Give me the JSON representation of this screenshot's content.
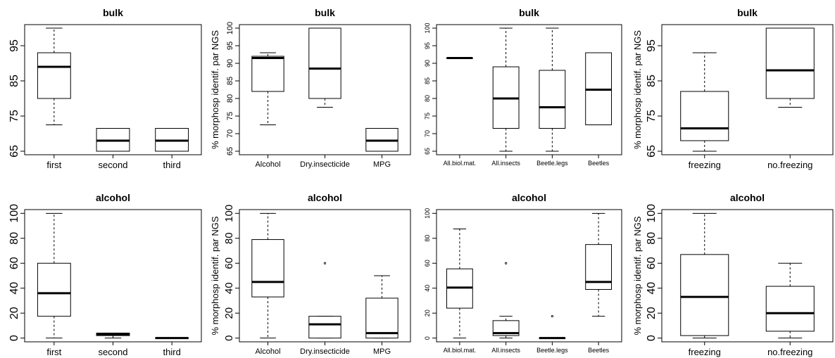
{
  "chart_data": [
    {
      "type": "boxplot",
      "title": "bulk",
      "ylabel": "",
      "ylim": [
        64,
        101
      ],
      "yticks": [
        65,
        75,
        85,
        95
      ],
      "categories": [
        "first",
        "second",
        "third"
      ],
      "boxes": [
        {
          "min": 72.5,
          "q1": 80,
          "median": 89,
          "q3": 93,
          "max": 100,
          "outliers": []
        },
        {
          "min": 65,
          "q1": 65,
          "median": 68,
          "q3": 71.5,
          "max": 71.5,
          "outliers": []
        },
        {
          "min": 65,
          "q1": 65,
          "median": 68,
          "q3": 71.5,
          "max": 71.5,
          "outliers": []
        }
      ]
    },
    {
      "type": "boxplot",
      "title": "bulk",
      "ylabel": "% morphosp identif. par NGS",
      "ylim": [
        64,
        101
      ],
      "yticks": [
        65,
        70,
        75,
        80,
        85,
        90,
        95,
        100
      ],
      "categories": [
        "Alcohol",
        "Dry.insecticide",
        "MPG"
      ],
      "boxes": [
        {
          "min": 72.5,
          "q1": 82,
          "median": 91.5,
          "q3": 92,
          "max": 93,
          "outliers": []
        },
        {
          "min": 77.5,
          "q1": 80,
          "median": 88.5,
          "q3": 100,
          "max": 100,
          "outliers": []
        },
        {
          "min": 65,
          "q1": 65,
          "median": 68,
          "q3": 71.5,
          "max": 71.5,
          "outliers": []
        }
      ]
    },
    {
      "type": "boxplot",
      "title": "bulk",
      "ylabel": "",
      "ylim": [
        64,
        101
      ],
      "yticks": [
        65,
        70,
        75,
        80,
        85,
        90,
        95,
        100
      ],
      "categories": [
        "All.biol.mat.",
        "All.insects",
        "Beetle.legs",
        "Beetles"
      ],
      "boxes": [
        {
          "min": 91.5,
          "q1": 91.5,
          "median": 91.5,
          "q3": 91.5,
          "max": 91.5,
          "outliers": []
        },
        {
          "min": 65,
          "q1": 71.5,
          "median": 80,
          "q3": 89,
          "max": 100,
          "outliers": []
        },
        {
          "min": 65,
          "q1": 71.5,
          "median": 77.5,
          "q3": 88,
          "max": 100,
          "outliers": []
        },
        {
          "min": 72.5,
          "q1": 72.5,
          "median": 82.5,
          "q3": 93,
          "max": 93,
          "outliers": []
        }
      ]
    },
    {
      "type": "boxplot",
      "title": "bulk",
      "ylabel": "% morphosp identif. par NGS",
      "ylim": [
        64,
        101
      ],
      "yticks": [
        65,
        75,
        85,
        95
      ],
      "categories": [
        "freezing",
        "no.freezing"
      ],
      "boxes": [
        {
          "min": 65,
          "q1": 68,
          "median": 71.5,
          "q3": 82,
          "max": 93,
          "outliers": []
        },
        {
          "min": 77.5,
          "q1": 80,
          "median": 88,
          "q3": 100,
          "max": 100,
          "outliers": []
        }
      ]
    },
    {
      "type": "boxplot",
      "title": "alcohol",
      "ylabel": "",
      "ylim": [
        -3,
        103
      ],
      "yticks": [
        0,
        20,
        40,
        60,
        80,
        100
      ],
      "categories": [
        "first",
        "second",
        "third"
      ],
      "boxes": [
        {
          "min": 0,
          "q1": 17.5,
          "median": 36,
          "q3": 60,
          "max": 100,
          "outliers": []
        },
        {
          "min": 0,
          "q1": 2,
          "median": 3,
          "q3": 4,
          "max": 4,
          "outliers": []
        },
        {
          "min": 0,
          "q1": 0,
          "median": 0,
          "q3": 0,
          "max": 0,
          "outliers": []
        }
      ]
    },
    {
      "type": "boxplot",
      "title": "alcohol",
      "ylabel": "% morphosp identif. par NGS",
      "ylim": [
        -3,
        103
      ],
      "yticks": [
        0,
        20,
        40,
        60,
        80,
        100
      ],
      "categories": [
        "Alcohol",
        "Dry.insecticide",
        "MPG"
      ],
      "boxes": [
        {
          "min": 0,
          "q1": 33,
          "median": 45,
          "q3": 79,
          "max": 100,
          "outliers": []
        },
        {
          "min": 0,
          "q1": 0,
          "median": 11,
          "q3": 17.5,
          "max": 17.5,
          "outliers": [
            60
          ]
        },
        {
          "min": 0,
          "q1": 0,
          "median": 4,
          "q3": 32,
          "max": 50,
          "outliers": []
        }
      ]
    },
    {
      "type": "boxplot",
      "title": "alcohol",
      "ylabel": "",
      "ylim": [
        -3,
        103
      ],
      "yticks": [
        0,
        20,
        40,
        60,
        80,
        100
      ],
      "categories": [
        "All.biol.mat.",
        "All.insects",
        "Beetle.legs",
        "Beetles"
      ],
      "boxes": [
        {
          "min": 0,
          "q1": 24,
          "median": 40.5,
          "q3": 55.5,
          "max": 87.5,
          "outliers": []
        },
        {
          "min": 0,
          "q1": 2,
          "median": 4,
          "q3": 14,
          "max": 17.5,
          "outliers": [
            60
          ]
        },
        {
          "min": 0,
          "q1": 0,
          "median": 0,
          "q3": 0,
          "max": 0,
          "outliers": [
            17.5
          ]
        },
        {
          "min": 17.5,
          "q1": 39,
          "median": 45,
          "q3": 75,
          "max": 100,
          "outliers": []
        }
      ]
    },
    {
      "type": "boxplot",
      "title": "alcohol",
      "ylabel": "% morphosp identif. par NGS",
      "ylim": [
        -3,
        103
      ],
      "yticks": [
        0,
        20,
        40,
        60,
        80,
        100
      ],
      "categories": [
        "freezing",
        "no.freezing"
      ],
      "boxes": [
        {
          "min": 0,
          "q1": 2,
          "median": 33,
          "q3": 67,
          "max": 100,
          "outliers": []
        },
        {
          "min": 0,
          "q1": 5.5,
          "median": 20,
          "q3": 41.5,
          "max": 60,
          "outliers": []
        }
      ]
    }
  ]
}
